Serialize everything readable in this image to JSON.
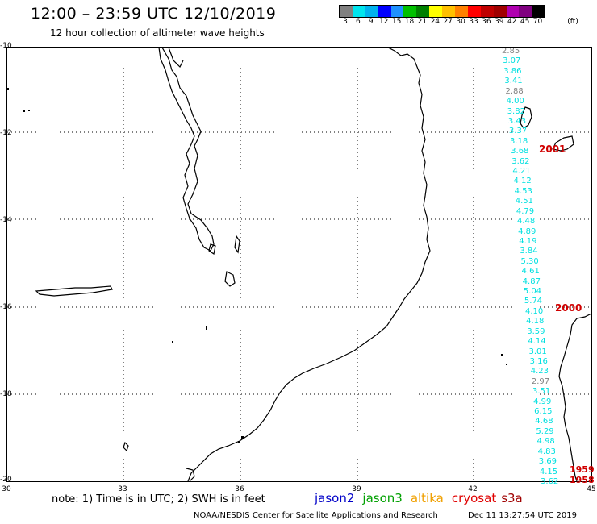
{
  "header": {
    "title": "12:00 – 23:59 UTC 12/10/2019",
    "subtitle": "12 hour collection of altimeter wave heights"
  },
  "colorbar": {
    "colors": [
      "#808080",
      "#00e5ee",
      "#00b2ee",
      "#0000ff",
      "#1e90ff",
      "#00c000",
      "#008000",
      "#ffff00",
      "#ffc000",
      "#ff8000",
      "#ff0000",
      "#c00000",
      "#a00000",
      "#b000b0",
      "#800080",
      "#000000"
    ],
    "labels": [
      "3",
      "6",
      "9",
      "12",
      "15",
      "18",
      "21",
      "24",
      "27",
      "30",
      "33",
      "36",
      "39",
      "42",
      "45",
      "70"
    ],
    "unit": "(ft)"
  },
  "axes": {
    "lat_labels": [
      "-10",
      "-12",
      "-14",
      "-16",
      "-18",
      "-20"
    ],
    "lon_labels": [
      "30",
      "33",
      "36",
      "39",
      "42",
      "45"
    ]
  },
  "track": {
    "wave_heights": [
      "2.85",
      "3.07",
      "3.86",
      "3.41",
      "2.88",
      "4.00",
      "3.82",
      "3.43",
      "3.37",
      "3.18",
      "3.68",
      "3.62",
      "4.21",
      "4.12",
      "4.53",
      "4.51",
      "4.79",
      "4.48",
      "4.89",
      "4.19",
      "3.84",
      "5.30",
      "4.61",
      "4.87",
      "5.04",
      "5.74",
      "4.10",
      "4.18",
      "3.59",
      "4.14",
      "3.01",
      "3.16",
      "4.23",
      "2.97",
      "3.51",
      "4.99",
      "6.15",
      "4.68",
      "5.29",
      "4.98",
      "4.83",
      "3.69",
      "4.15",
      "3.62"
    ],
    "gray_values": [
      "2.85",
      "2.88",
      "2.97"
    ],
    "colors": {
      "cyan": "#00e0e0",
      "gray": "#808080"
    },
    "cycle_labels": [
      "2001",
      "2000",
      "1959",
      "1958"
    ]
  },
  "footer": {
    "note": "note: 1) Time is in UTC; 2) SWH is in feet",
    "legend": [
      {
        "name": "jason2",
        "color": "#0000c8"
      },
      {
        "name": "jason3",
        "color": "#00a000"
      },
      {
        "name": "altika",
        "color": "#f0a000"
      },
      {
        "name": "cryosat",
        "color": "#e00000"
      },
      {
        "name": "s3a",
        "color": "#a00000"
      }
    ],
    "credit": "NOAA/NESDIS Center for Satellite Applications and Research",
    "stamp": "Dec 11 13:27:54 UTC 2019"
  }
}
